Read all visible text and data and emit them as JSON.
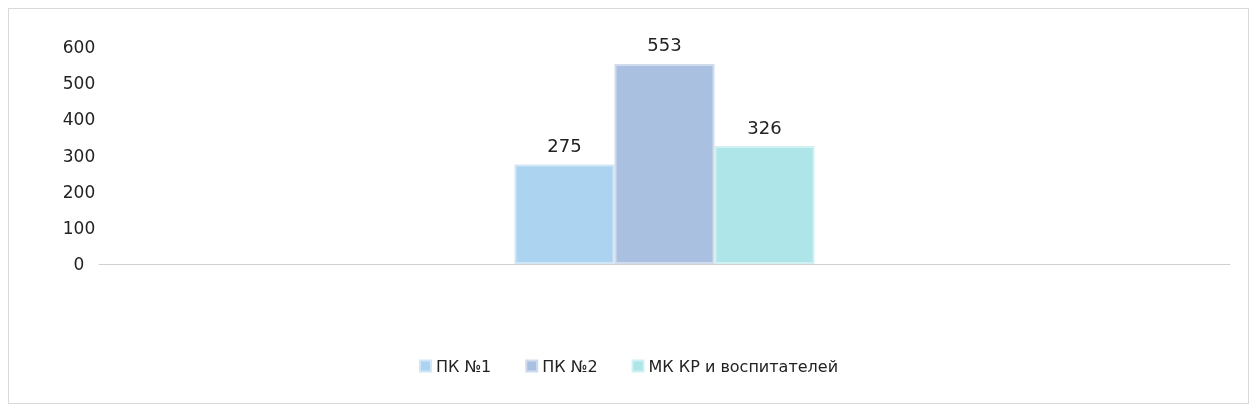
{
  "chart_data": {
    "type": "bar",
    "categories": [
      null
    ],
    "series": [
      {
        "name": "ПК №1",
        "color": "#acd3f0",
        "values": [
          275
        ]
      },
      {
        "name": "ПК №2",
        "color": "#aac0e0",
        "values": [
          553
        ]
      },
      {
        "name": "МК КР и воспитателей",
        "color": "#ade5e8",
        "values": [
          326
        ]
      }
    ],
    "ylim": [
      0,
      600
    ],
    "yticks": [
      0,
      100,
      200,
      300,
      400,
      500,
      600
    ],
    "grid": false,
    "legend": "bottom",
    "data_labels": true
  }
}
